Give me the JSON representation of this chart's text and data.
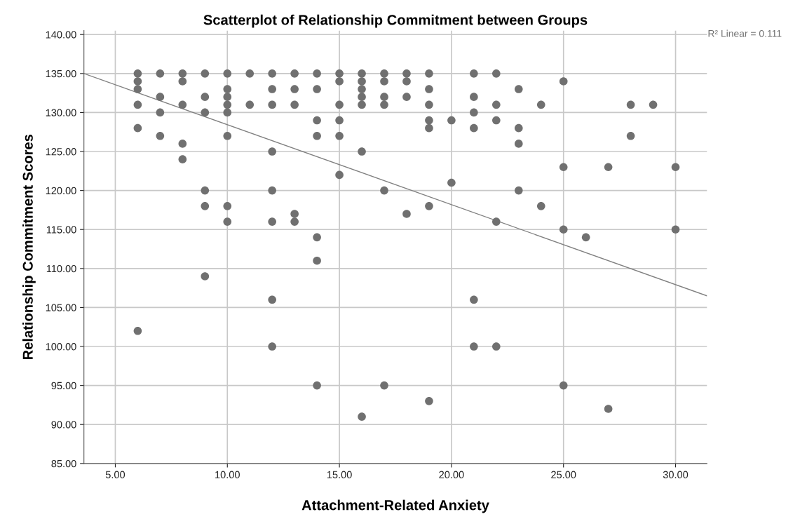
{
  "chart_data": {
    "type": "scatter",
    "title": "Scatterplot of Relationship Commitment between Groups",
    "xlabel": "Attachment-Related Anxiety",
    "ylabel": "Relationship Commitment Scores",
    "annotations": [
      "R² Linear = 0.111"
    ],
    "series": [
      {
        "color": "#707070",
        "marker": "circle",
        "x": [
          6,
          6,
          6,
          6,
          6,
          6,
          7,
          7,
          7,
          7,
          8,
          8,
          8,
          8,
          8,
          9,
          9,
          9,
          9,
          9,
          9,
          10,
          10,
          10,
          10,
          10,
          10,
          10,
          10,
          11,
          11,
          12,
          12,
          12,
          12,
          12,
          12,
          12,
          12,
          13,
          13,
          13,
          13,
          13,
          14,
          14,
          14,
          14,
          14,
          14,
          14,
          15,
          15,
          15,
          15,
          15,
          15,
          16,
          16,
          16,
          16,
          16,
          16,
          16,
          17,
          17,
          17,
          17,
          17,
          17,
          18,
          18,
          18,
          18,
          19,
          19,
          19,
          19,
          19,
          19,
          19,
          20,
          20,
          21,
          21,
          21,
          21,
          21,
          21,
          22,
          22,
          22,
          22,
          22,
          23,
          23,
          23,
          23,
          24,
          24,
          25,
          25,
          25,
          25,
          26,
          27,
          27,
          28,
          28,
          29,
          30,
          30
        ],
        "values": [
          135,
          134,
          133,
          131,
          128,
          102,
          135,
          132,
          130,
          127,
          135,
          134,
          131,
          126,
          124,
          135,
          132,
          130,
          120,
          118,
          109,
          135,
          133,
          132,
          131,
          130,
          127,
          118,
          116,
          135,
          131,
          135,
          133,
          131,
          125,
          120,
          116,
          106,
          100,
          135,
          133,
          131,
          117,
          116,
          135,
          133,
          129,
          127,
          114,
          111,
          95,
          135,
          134,
          131,
          129,
          127,
          122,
          135,
          134,
          133,
          132,
          131,
          125,
          91,
          135,
          134,
          132,
          131,
          120,
          95,
          135,
          134,
          132,
          117,
          135,
          133,
          131,
          129,
          128,
          118,
          93,
          129,
          121,
          135,
          132,
          130,
          128,
          106,
          100,
          135,
          131,
          129,
          116,
          100,
          133,
          128,
          126,
          120,
          131,
          118,
          134,
          123,
          115,
          95,
          114,
          123,
          92,
          131,
          127,
          131,
          123,
          115
        ]
      },
      {
        "type": "line",
        "color": "#808080",
        "marker": "none",
        "line_style": "solid",
        "x": [
          3.6,
          31.4
        ],
        "values": [
          135,
          106.5
        ]
      }
    ],
    "xlim": [
      3.6,
      31.4
    ],
    "ylim": [
      85,
      140.5
    ],
    "xticks": [
      {
        "value": 5,
        "label": "5.00"
      },
      {
        "value": 10,
        "label": "10.00"
      },
      {
        "value": 15,
        "label": "15.00"
      },
      {
        "value": 20,
        "label": "20.00"
      },
      {
        "value": 25,
        "label": "25.00"
      },
      {
        "value": 30,
        "label": "30.00"
      }
    ],
    "yticks": [
      {
        "value": 85,
        "label": "85.00"
      },
      {
        "value": 90,
        "label": "90.00"
      },
      {
        "value": 95,
        "label": "95.00"
      },
      {
        "value": 100,
        "label": "100.00"
      },
      {
        "value": 105,
        "label": "105.00"
      },
      {
        "value": 110,
        "label": "110.00"
      },
      {
        "value": 115,
        "label": "115.00"
      },
      {
        "value": 120,
        "label": "120.00"
      },
      {
        "value": 125,
        "label": "125.00"
      },
      {
        "value": 130,
        "label": "130.00"
      },
      {
        "value": 135,
        "label": "135.00"
      },
      {
        "value": 140,
        "label": "140.00"
      }
    ],
    "grid": true
  }
}
